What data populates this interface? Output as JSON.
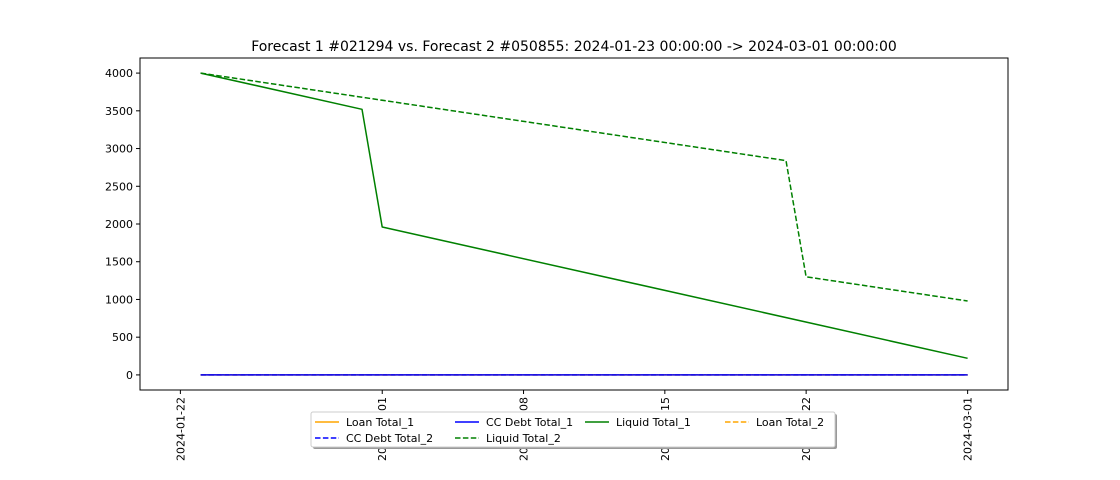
{
  "chart_data": {
    "type": "line",
    "title": "Forecast 1 #021294 vs. Forecast 2 #050855: 2024-01-23 00:00:00 -> 2024-03-01 00:00:00",
    "xlabel": "",
    "ylabel": "",
    "x_range": [
      "2024-01-20",
      "2024-03-03"
    ],
    "y_range": [
      -200,
      4200
    ],
    "y_ticks": [
      0,
      500,
      1000,
      1500,
      2000,
      2500,
      3000,
      3500,
      4000
    ],
    "x_ticks": [
      "2024-01-22",
      "2024-02-01",
      "2024-02-08",
      "2024-02-15",
      "2024-02-22",
      "2024-03-01"
    ],
    "x_tick_labels": [
      "2024-01-22",
      "2024-02-01",
      "2024-02-08",
      "2024-02-15",
      "2024-02-22",
      "2024-03-01"
    ],
    "grid": false,
    "legend_position": "below plot, center",
    "legend_columns": 4,
    "series": [
      {
        "name": "Loan Total_1",
        "color": "#ffa500",
        "dash": "solid",
        "points": [
          [
            "2024-01-23",
            0
          ],
          [
            "2024-03-01",
            0
          ]
        ]
      },
      {
        "name": "CC Debt Total_1",
        "color": "#0000ff",
        "dash": "solid",
        "points": [
          [
            "2024-01-23",
            0
          ],
          [
            "2024-03-01",
            0
          ]
        ]
      },
      {
        "name": "Liquid Total_1",
        "color": "#008000",
        "dash": "solid",
        "points": [
          [
            "2024-01-23",
            4000
          ],
          [
            "2024-01-31",
            3520
          ],
          [
            "2024-02-01",
            1960
          ],
          [
            "2024-03-01",
            220
          ]
        ]
      },
      {
        "name": "Loan Total_2",
        "color": "#ffa500",
        "dash": "dashed",
        "points": [
          [
            "2024-01-23",
            0
          ],
          [
            "2024-03-01",
            0
          ]
        ]
      },
      {
        "name": "CC Debt Total_2",
        "color": "#0000ff",
        "dash": "dashed",
        "points": [
          [
            "2024-01-23",
            0
          ],
          [
            "2024-03-01",
            0
          ]
        ]
      },
      {
        "name": "Liquid Total_2",
        "color": "#008000",
        "dash": "dashed",
        "points": [
          [
            "2024-01-23",
            4000
          ],
          [
            "2024-02-21",
            2840
          ],
          [
            "2024-02-22",
            1300
          ],
          [
            "2024-03-01",
            980
          ]
        ]
      }
    ]
  }
}
